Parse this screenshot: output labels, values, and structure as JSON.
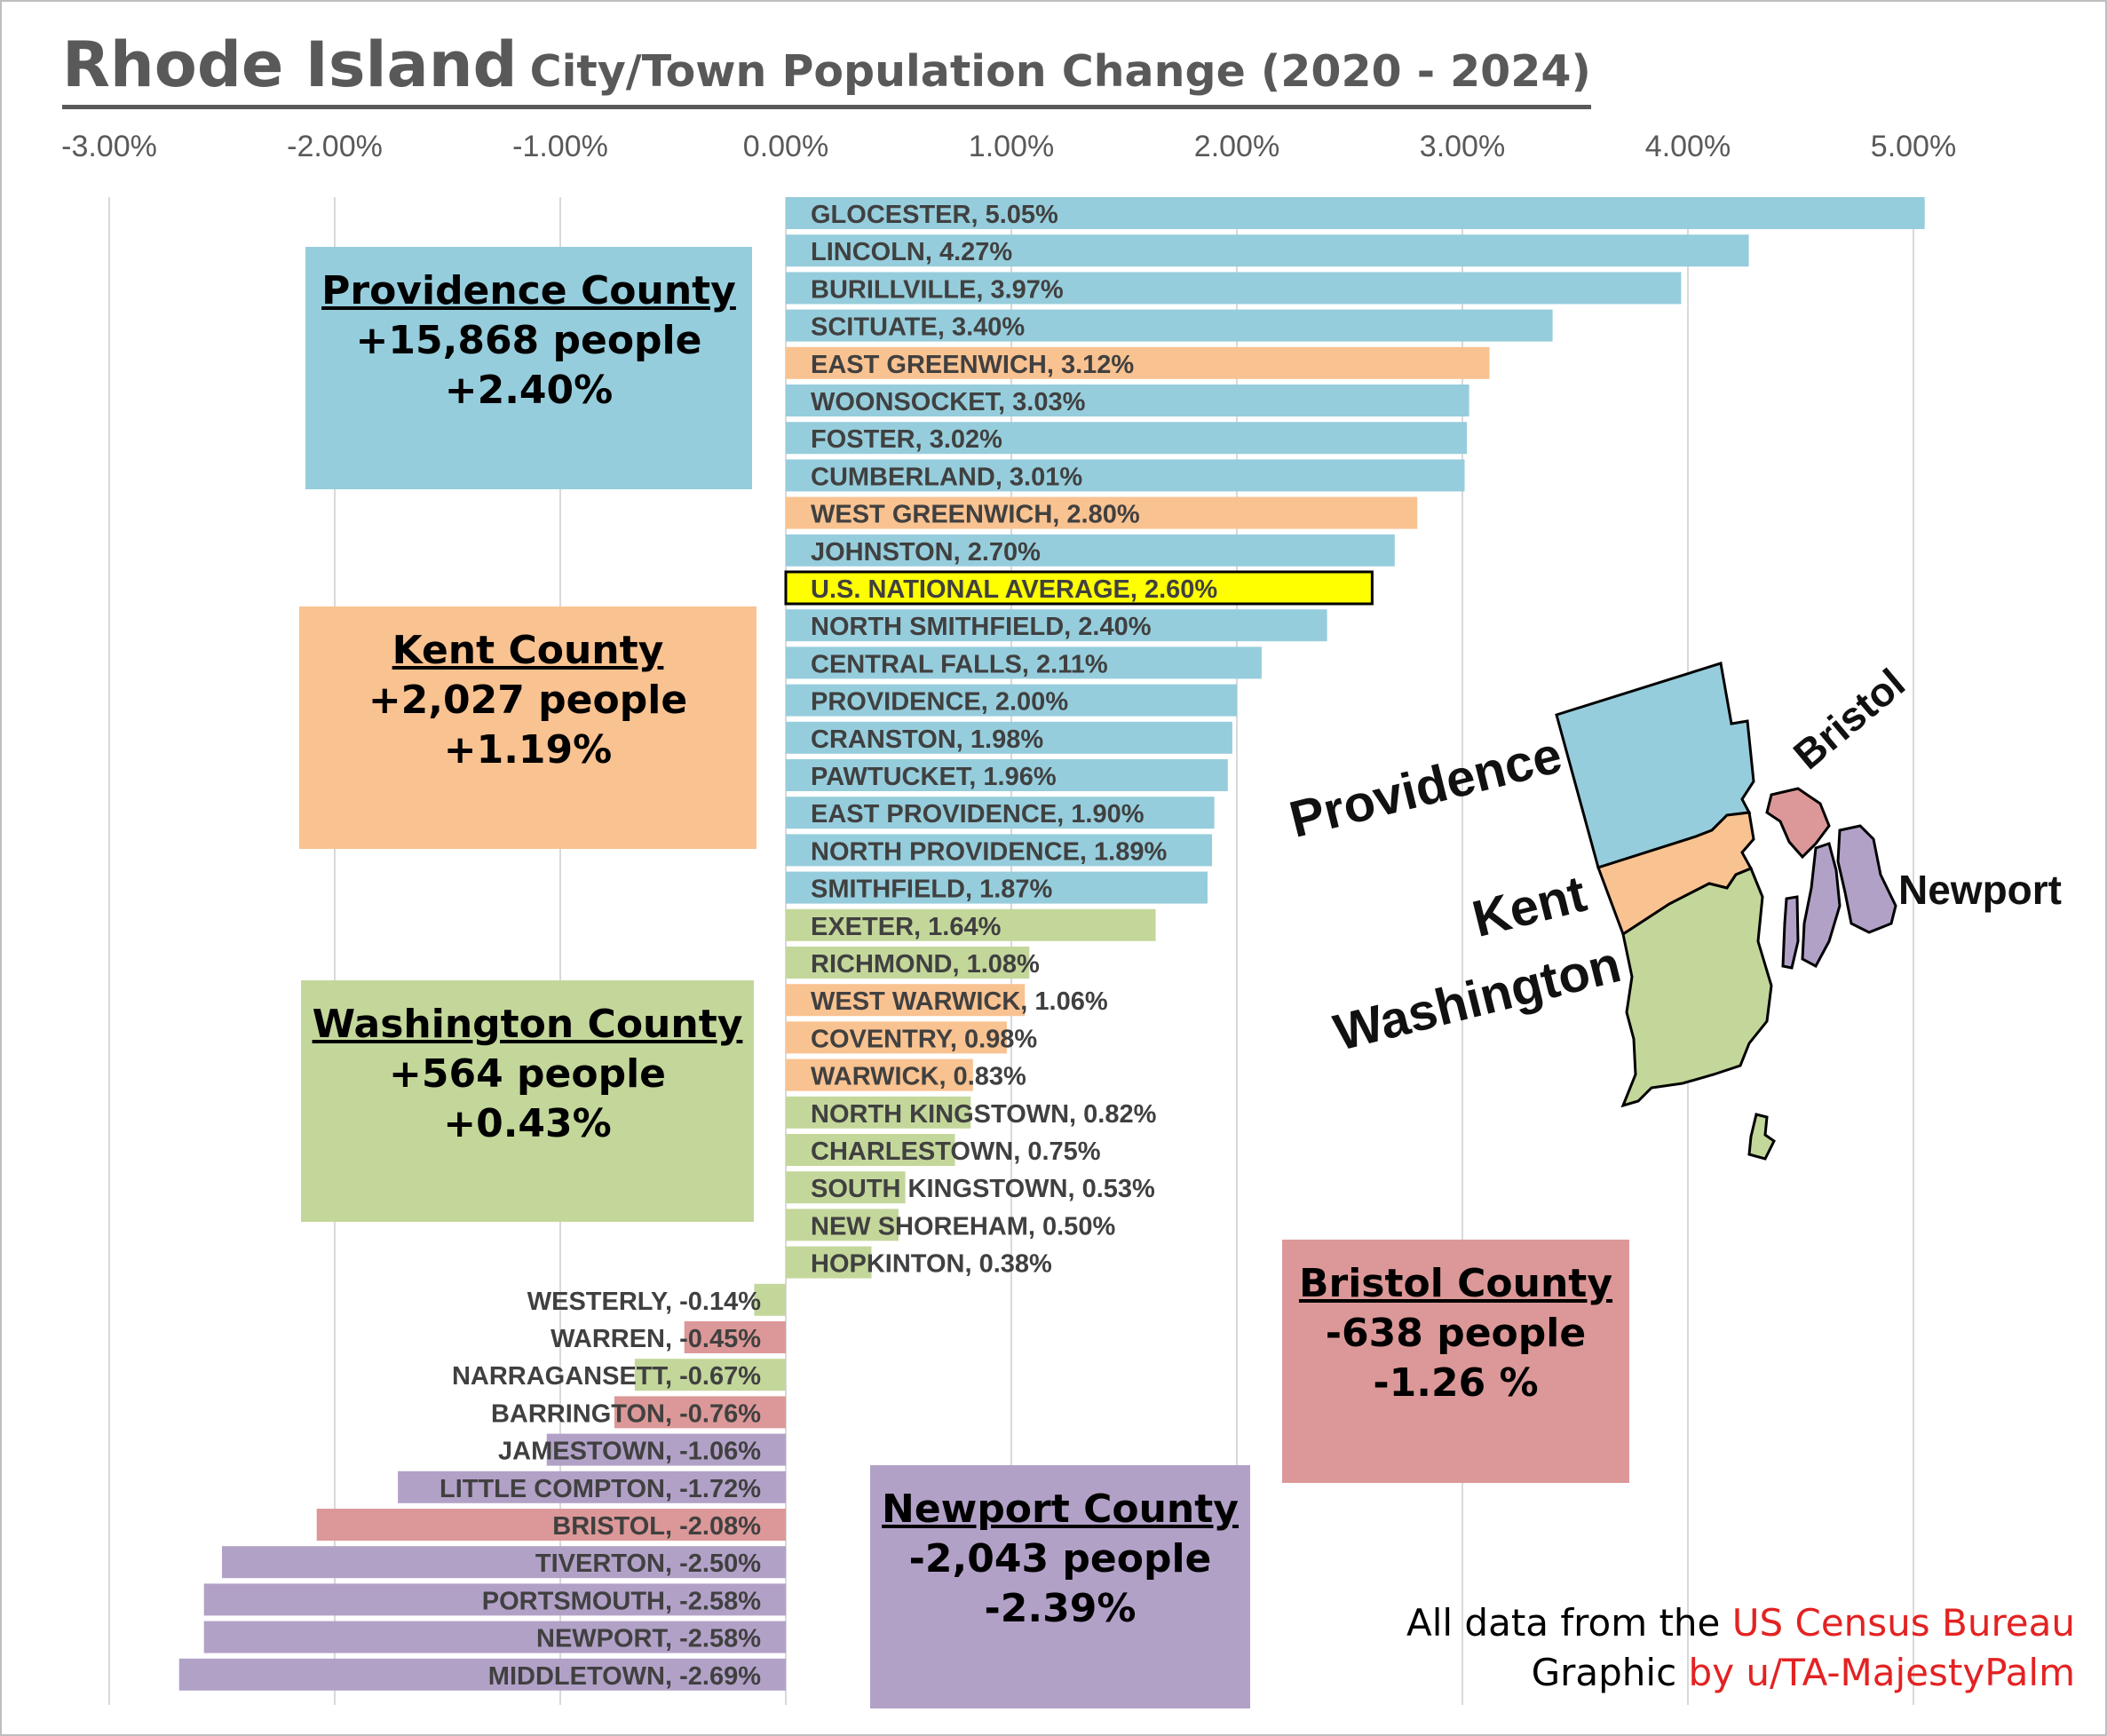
{
  "title": {
    "main": "Rhode Island",
    "sub": "City/Town Population Change (2020 - 2024)"
  },
  "colors": {
    "Providence": "#96cddc",
    "Kent": "#f9c291",
    "Washington": "#c4d79b",
    "Bristol": "#dc9898",
    "Newport": "#b2a1c7",
    "National": "#ffff00"
  },
  "chart_data": {
    "type": "bar",
    "orientation": "horizontal",
    "title": "Rhode Island City/Town Population Change (2020 - 2024)",
    "xlim": [
      -0.03,
      0.0525
    ],
    "x_ticks": [
      "-3.00%",
      "-2.00%",
      "-1.00%",
      "0.00%",
      "1.00%",
      "2.00%",
      "3.00%",
      "4.00%",
      "5.00%"
    ],
    "x_tick_values": [
      -0.03,
      -0.02,
      -0.01,
      0,
      0.01,
      0.02,
      0.03,
      0.04,
      0.05
    ],
    "grid": "vertical",
    "bars": [
      {
        "label": "GLOCESTER, 5.05%",
        "value": 0.0505,
        "county": "Providence"
      },
      {
        "label": "LINCOLN, 4.27%",
        "value": 0.0427,
        "county": "Providence"
      },
      {
        "label": "BURILLVILLE, 3.97%",
        "value": 0.0397,
        "county": "Providence"
      },
      {
        "label": "SCITUATE, 3.40%",
        "value": 0.034,
        "county": "Providence"
      },
      {
        "label": "EAST GREENWICH, 3.12%",
        "value": 0.0312,
        "county": "Kent"
      },
      {
        "label": "WOONSOCKET, 3.03%",
        "value": 0.0303,
        "county": "Providence"
      },
      {
        "label": "FOSTER, 3.02%",
        "value": 0.0302,
        "county": "Providence"
      },
      {
        "label": "CUMBERLAND, 3.01%",
        "value": 0.0301,
        "county": "Providence"
      },
      {
        "label": "WEST GREENWICH, 2.80%",
        "value": 0.028,
        "county": "Kent"
      },
      {
        "label": "JOHNSTON, 2.70%",
        "value": 0.027,
        "county": "Providence"
      },
      {
        "label": "U.S. NATIONAL AVERAGE, 2.60%",
        "value": 0.026,
        "county": "National"
      },
      {
        "label": "NORTH SMITHFIELD, 2.40%",
        "value": 0.024,
        "county": "Providence"
      },
      {
        "label": "CENTRAL FALLS, 2.11%",
        "value": 0.0211,
        "county": "Providence"
      },
      {
        "label": "PROVIDENCE, 2.00%",
        "value": 0.02,
        "county": "Providence"
      },
      {
        "label": "CRANSTON, 1.98%",
        "value": 0.0198,
        "county": "Providence"
      },
      {
        "label": "PAWTUCKET, 1.96%",
        "value": 0.0196,
        "county": "Providence"
      },
      {
        "label": "EAST PROVIDENCE, 1.90%",
        "value": 0.019,
        "county": "Providence"
      },
      {
        "label": "NORTH PROVIDENCE, 1.89%",
        "value": 0.0189,
        "county": "Providence"
      },
      {
        "label": "SMITHFIELD, 1.87%",
        "value": 0.0187,
        "county": "Providence"
      },
      {
        "label": "EXETER, 1.64%",
        "value": 0.0164,
        "county": "Washington"
      },
      {
        "label": "RICHMOND, 1.08%",
        "value": 0.0108,
        "county": "Washington"
      },
      {
        "label": "WEST WARWICK, 1.06%",
        "value": 0.0106,
        "county": "Kent"
      },
      {
        "label": "COVENTRY, 0.98%",
        "value": 0.0098,
        "county": "Kent"
      },
      {
        "label": "WARWICK, 0.83%",
        "value": 0.0083,
        "county": "Kent"
      },
      {
        "label": "NORTH KINGSTOWN, 0.82%",
        "value": 0.0082,
        "county": "Washington"
      },
      {
        "label": "CHARLESTOWN, 0.75%",
        "value": 0.0075,
        "county": "Washington"
      },
      {
        "label": "SOUTH KINGSTOWN, 0.53%",
        "value": 0.0053,
        "county": "Washington"
      },
      {
        "label": "NEW SHOREHAM, 0.50%",
        "value": 0.005,
        "county": "Washington"
      },
      {
        "label": "HOPKINTON, 0.38%",
        "value": 0.0038,
        "county": "Washington"
      },
      {
        "label": "WESTERLY, -0.14%",
        "value": -0.0014,
        "county": "Washington"
      },
      {
        "label": "WARREN, -0.45%",
        "value": -0.0045,
        "county": "Bristol"
      },
      {
        "label": "NARRAGANSETT, -0.67%",
        "value": -0.0067,
        "county": "Washington"
      },
      {
        "label": "BARRINGTON, -0.76%",
        "value": -0.0076,
        "county": "Bristol"
      },
      {
        "label": "JAMESTOWN, -1.06%",
        "value": -0.0106,
        "county": "Newport"
      },
      {
        "label": "LITTLE COMPTON, -1.72%",
        "value": -0.0172,
        "county": "Newport"
      },
      {
        "label": "BRISTOL, -2.08%",
        "value": -0.0208,
        "county": "Bristol"
      },
      {
        "label": "TIVERTON, -2.50%",
        "value": -0.025,
        "county": "Newport"
      },
      {
        "label": "PORTSMOUTH, -2.58%",
        "value": -0.0258,
        "county": "Newport"
      },
      {
        "label": "NEWPORT, -2.58%",
        "value": -0.0258,
        "county": "Newport"
      },
      {
        "label": "MIDDLETOWN, -2.69%",
        "value": -0.0269,
        "county": "Newport"
      }
    ]
  },
  "county_boxes": [
    {
      "key": "Providence",
      "name": "Providence County",
      "people": "+15,868 people",
      "pct": "+2.40%"
    },
    {
      "key": "Kent",
      "name": "Kent County",
      "people": "+2,027 people",
      "pct": "+1.19%"
    },
    {
      "key": "Washington",
      "name": "Washington County",
      "people": "+564 people",
      "pct": "+0.43%"
    },
    {
      "key": "Bristol",
      "name": "Bristol County",
      "people": "-638 people",
      "pct": "-1.26 %"
    },
    {
      "key": "Newport",
      "name": "Newport County",
      "people": "-2,043 people",
      "pct": "-2.39%"
    }
  ],
  "map_labels": {
    "providence": "Providence",
    "kent": "Kent",
    "washington": "Washington",
    "bristol": "Bristol",
    "newport": "Newport"
  },
  "credits": {
    "line1_prefix": "All data from the ",
    "line1_source": "US Census Bureau",
    "line2_prefix": "Graphic ",
    "line2_author": "by u/TA-MajestyPalm"
  }
}
